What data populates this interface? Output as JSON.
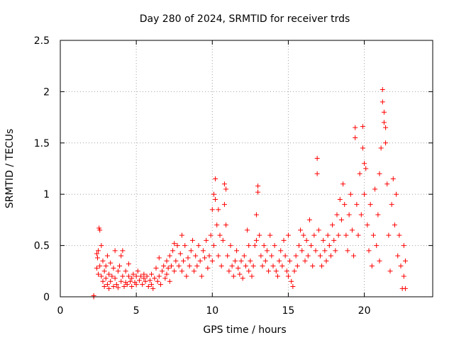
{
  "chart_data": {
    "type": "scatter",
    "title": "Day 280 of 2024, SRMTID for receiver trds",
    "xlabel": "GPS time / hours",
    "ylabel": "SRMTID / TECUs",
    "xlim": [
      0,
      24.5
    ],
    "ylim": [
      0,
      2.5
    ],
    "xticks": [
      0,
      5,
      10,
      15,
      20
    ],
    "xtick_labels": [
      "0",
      "5",
      "10",
      "15",
      "20"
    ],
    "yticks": [
      0,
      0.5,
      1,
      1.5,
      2,
      2.5
    ],
    "ytick_labels": [
      "0",
      "0.5",
      "1",
      "1.5",
      "2",
      "2.5"
    ],
    "grid": true,
    "marker": "+",
    "color": "#ff0000",
    "series": [
      {
        "name": "SRMTID",
        "points": [
          [
            2.2,
            0.0
          ],
          [
            2.2,
            0.01
          ],
          [
            2.4,
            0.28
          ],
          [
            2.4,
            0.42
          ],
          [
            2.45,
            0.38
          ],
          [
            2.5,
            0.22
          ],
          [
            2.5,
            0.45
          ],
          [
            2.55,
            0.67
          ],
          [
            2.6,
            0.65
          ],
          [
            2.6,
            0.3
          ],
          [
            2.7,
            0.2
          ],
          [
            2.7,
            0.5
          ],
          [
            2.8,
            0.15
          ],
          [
            2.8,
            0.35
          ],
          [
            2.9,
            0.25
          ],
          [
            2.9,
            0.1
          ],
          [
            3.0,
            0.3
          ],
          [
            3.0,
            0.18
          ],
          [
            3.1,
            0.12
          ],
          [
            3.1,
            0.4
          ],
          [
            3.2,
            0.22
          ],
          [
            3.2,
            0.08
          ],
          [
            3.3,
            0.15
          ],
          [
            3.3,
            0.33
          ],
          [
            3.4,
            0.2
          ],
          [
            3.5,
            0.28
          ],
          [
            3.5,
            0.1
          ],
          [
            3.6,
            0.45
          ],
          [
            3.6,
            0.18
          ],
          [
            3.7,
            0.12
          ],
          [
            3.8,
            0.25
          ],
          [
            3.8,
            0.09
          ],
          [
            3.9,
            0.3
          ],
          [
            4.0,
            0.15
          ],
          [
            4.0,
            0.4
          ],
          [
            4.1,
            0.2
          ],
          [
            4.1,
            0.45
          ],
          [
            4.2,
            0.1
          ],
          [
            4.3,
            0.25
          ],
          [
            4.3,
            0.14
          ],
          [
            4.4,
            0.12
          ],
          [
            4.5,
            0.2
          ],
          [
            4.5,
            0.32
          ],
          [
            4.6,
            0.15
          ],
          [
            4.7,
            0.1
          ],
          [
            4.7,
            0.18
          ],
          [
            4.8,
            0.22
          ],
          [
            4.9,
            0.14
          ],
          [
            5.0,
            0.12
          ],
          [
            5.0,
            0.2
          ],
          [
            5.1,
            0.25
          ],
          [
            5.2,
            0.16
          ],
          [
            5.3,
            0.2
          ],
          [
            5.4,
            0.12
          ],
          [
            5.5,
            0.18
          ],
          [
            5.5,
            0.22
          ],
          [
            5.6,
            0.15
          ],
          [
            5.7,
            0.2
          ],
          [
            5.8,
            0.1
          ],
          [
            5.9,
            0.16
          ],
          [
            6.0,
            0.12
          ],
          [
            6.0,
            0.22
          ],
          [
            6.1,
            0.08
          ],
          [
            6.2,
            0.18
          ],
          [
            6.3,
            0.28
          ],
          [
            6.4,
            0.15
          ],
          [
            6.5,
            0.38
          ],
          [
            6.5,
            0.2
          ],
          [
            6.6,
            0.12
          ],
          [
            6.7,
            0.25
          ],
          [
            6.8,
            0.3
          ],
          [
            6.9,
            0.18
          ],
          [
            7.0,
            0.35
          ],
          [
            7.0,
            0.22
          ],
          [
            7.1,
            0.28
          ],
          [
            7.2,
            0.4
          ],
          [
            7.2,
            0.15
          ],
          [
            7.3,
            0.3
          ],
          [
            7.4,
            0.45
          ],
          [
            7.5,
            0.52
          ],
          [
            7.5,
            0.25
          ],
          [
            7.6,
            0.35
          ],
          [
            7.7,
            0.5
          ],
          [
            7.8,
            0.3
          ],
          [
            7.9,
            0.42
          ],
          [
            8.0,
            0.6
          ],
          [
            8.0,
            0.25
          ],
          [
            8.1,
            0.35
          ],
          [
            8.2,
            0.5
          ],
          [
            8.3,
            0.2
          ],
          [
            8.4,
            0.38
          ],
          [
            8.5,
            0.3
          ],
          [
            8.6,
            0.45
          ],
          [
            8.7,
            0.55
          ],
          [
            8.8,
            0.25
          ],
          [
            8.9,
            0.4
          ],
          [
            9.0,
            0.3
          ],
          [
            9.1,
            0.5
          ],
          [
            9.2,
            0.35
          ],
          [
            9.3,
            0.2
          ],
          [
            9.4,
            0.45
          ],
          [
            9.5,
            0.38
          ],
          [
            9.6,
            0.55
          ],
          [
            9.7,
            0.28
          ],
          [
            9.8,
            0.4
          ],
          [
            9.9,
            0.6
          ],
          [
            10.0,
            0.85
          ],
          [
            10.0,
            0.35
          ],
          [
            10.1,
            1.0
          ],
          [
            10.1,
            0.5
          ],
          [
            10.2,
            1.15
          ],
          [
            10.2,
            0.95
          ],
          [
            10.3,
            0.7
          ],
          [
            10.4,
            0.4
          ],
          [
            10.4,
            0.85
          ],
          [
            10.5,
            0.6
          ],
          [
            10.6,
            0.3
          ],
          [
            10.7,
            0.55
          ],
          [
            10.8,
            1.1
          ],
          [
            10.8,
            0.9
          ],
          [
            10.9,
            1.05
          ],
          [
            10.9,
            0.7
          ],
          [
            11.0,
            0.4
          ],
          [
            11.1,
            0.25
          ],
          [
            11.2,
            0.5
          ],
          [
            11.3,
            0.3
          ],
          [
            11.4,
            0.2
          ],
          [
            11.5,
            0.35
          ],
          [
            11.6,
            0.45
          ],
          [
            11.7,
            0.28
          ],
          [
            11.8,
            0.22
          ],
          [
            11.9,
            0.35
          ],
          [
            12.0,
            0.18
          ],
          [
            12.1,
            0.4
          ],
          [
            12.2,
            0.3
          ],
          [
            12.3,
            0.65
          ],
          [
            12.4,
            0.5
          ],
          [
            12.4,
            0.25
          ],
          [
            12.5,
            0.35
          ],
          [
            12.6,
            0.2
          ],
          [
            12.7,
            0.3
          ],
          [
            12.8,
            0.5
          ],
          [
            12.9,
            0.8
          ],
          [
            12.9,
            0.55
          ],
          [
            13.0,
            1.08
          ],
          [
            13.0,
            1.02
          ],
          [
            13.1,
            0.6
          ],
          [
            13.2,
            0.4
          ],
          [
            13.3,
            0.3
          ],
          [
            13.4,
            0.5
          ],
          [
            13.5,
            0.35
          ],
          [
            13.6,
            0.45
          ],
          [
            13.7,
            0.25
          ],
          [
            13.8,
            0.6
          ],
          [
            13.9,
            0.4
          ],
          [
            14.0,
            0.3
          ],
          [
            14.1,
            0.5
          ],
          [
            14.2,
            0.25
          ],
          [
            14.3,
            0.2
          ],
          [
            14.4,
            0.35
          ],
          [
            14.5,
            0.45
          ],
          [
            14.6,
            0.3
          ],
          [
            14.7,
            0.55
          ],
          [
            14.8,
            0.4
          ],
          [
            14.9,
            0.25
          ],
          [
            15.0,
            0.6
          ],
          [
            15.0,
            0.2
          ],
          [
            15.1,
            0.35
          ],
          [
            15.2,
            0.15
          ],
          [
            15.3,
            0.1
          ],
          [
            15.4,
            0.25
          ],
          [
            15.5,
            0.4
          ],
          [
            15.6,
            0.3
          ],
          [
            15.7,
            0.5
          ],
          [
            15.8,
            0.65
          ],
          [
            15.9,
            0.45
          ],
          [
            16.0,
            0.6
          ],
          [
            16.1,
            0.35
          ],
          [
            16.2,
            0.55
          ],
          [
            16.3,
            0.4
          ],
          [
            16.4,
            0.75
          ],
          [
            16.5,
            0.5
          ],
          [
            16.6,
            0.3
          ],
          [
            16.7,
            0.6
          ],
          [
            16.8,
            0.45
          ],
          [
            16.9,
            1.2
          ],
          [
            16.9,
            1.35
          ],
          [
            17.0,
            0.65
          ],
          [
            17.1,
            0.4
          ],
          [
            17.2,
            0.3
          ],
          [
            17.3,
            0.55
          ],
          [
            17.4,
            0.45
          ],
          [
            17.5,
            0.35
          ],
          [
            17.6,
            0.6
          ],
          [
            17.7,
            0.5
          ],
          [
            17.8,
            0.4
          ],
          [
            17.9,
            0.7
          ],
          [
            18.0,
            0.55
          ],
          [
            18.1,
            0.45
          ],
          [
            18.2,
            0.8
          ],
          [
            18.3,
            0.6
          ],
          [
            18.4,
            0.95
          ],
          [
            18.5,
            0.75
          ],
          [
            18.6,
            1.1
          ],
          [
            18.7,
            0.9
          ],
          [
            18.8,
            0.6
          ],
          [
            18.9,
            0.45
          ],
          [
            19.0,
            0.8
          ],
          [
            19.1,
            1.0
          ],
          [
            19.2,
            0.65
          ],
          [
            19.3,
            0.4
          ],
          [
            19.4,
            1.65
          ],
          [
            19.4,
            1.55
          ],
          [
            19.5,
            0.9
          ],
          [
            19.6,
            0.6
          ],
          [
            19.7,
            1.2
          ],
          [
            19.8,
            0.8
          ],
          [
            19.9,
            1.66
          ],
          [
            19.9,
            1.45
          ],
          [
            20.0,
            1.3
          ],
          [
            20.0,
            1.0
          ],
          [
            20.1,
            1.25
          ],
          [
            20.2,
            0.7
          ],
          [
            20.3,
            0.45
          ],
          [
            20.4,
            0.9
          ],
          [
            20.5,
            0.3
          ],
          [
            20.6,
            0.6
          ],
          [
            20.7,
            1.05
          ],
          [
            20.8,
            0.5
          ],
          [
            20.9,
            0.8
          ],
          [
            21.0,
            1.2
          ],
          [
            21.0,
            0.35
          ],
          [
            21.1,
            1.45
          ],
          [
            21.2,
            2.02
          ],
          [
            21.2,
            1.9
          ],
          [
            21.3,
            1.8
          ],
          [
            21.3,
            1.7
          ],
          [
            21.4,
            1.65
          ],
          [
            21.4,
            1.5
          ],
          [
            21.5,
            1.1
          ],
          [
            21.6,
            0.6
          ],
          [
            21.7,
            0.25
          ],
          [
            21.8,
            0.9
          ],
          [
            21.9,
            1.15
          ],
          [
            22.0,
            0.7
          ],
          [
            22.1,
            1.0
          ],
          [
            22.2,
            0.4
          ],
          [
            22.3,
            0.6
          ],
          [
            22.4,
            0.3
          ],
          [
            22.5,
            0.08
          ],
          [
            22.6,
            0.5
          ],
          [
            22.6,
            0.2
          ],
          [
            22.7,
            0.08
          ],
          [
            22.7,
            0.35
          ]
        ]
      }
    ]
  }
}
